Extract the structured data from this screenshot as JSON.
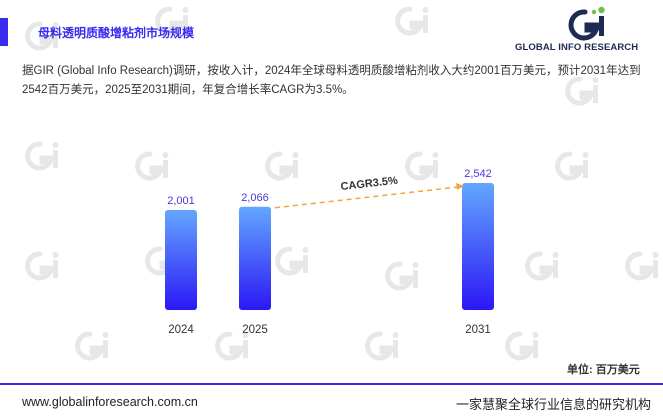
{
  "header": {
    "title": "母料透明质酸增粘剂市场规模",
    "logo_text": "GLOBAL INFO RESEARCH"
  },
  "summary": "据GIR (Global Info Research)调研，按收入计，2024年全球母料透明质酸增粘剂收入大约2001百万美元，预计2031年达到2542百万美元，2025至2031期间，年复合增长率CAGR为3.5%。",
  "chart_data": {
    "type": "bar",
    "categories": [
      "2024",
      "2025",
      "2031"
    ],
    "values": [
      2001,
      2066,
      2542
    ],
    "value_labels": [
      "2,001",
      "2,066",
      "2,542"
    ],
    "annotation": "CAGR3.5%",
    "unit_label": "单位: 百万美元",
    "colors": {
      "bar_top": "#63a7ff",
      "bar_bottom": "#2b17f5",
      "label": "#4a3ad6",
      "trend": "#f5a33a"
    }
  },
  "footer": {
    "website": "www.globalinforesearch.com.cn",
    "slogan": "一家慧聚全球行业信息的研究机构"
  },
  "colors": {
    "accent": "#3b2bf0",
    "logo_dark": "#1e2b52",
    "logo_green": "#6cc04a"
  },
  "icons": {
    "logo": "gi-logo-icon",
    "watermark": "gi-watermark-icon"
  }
}
